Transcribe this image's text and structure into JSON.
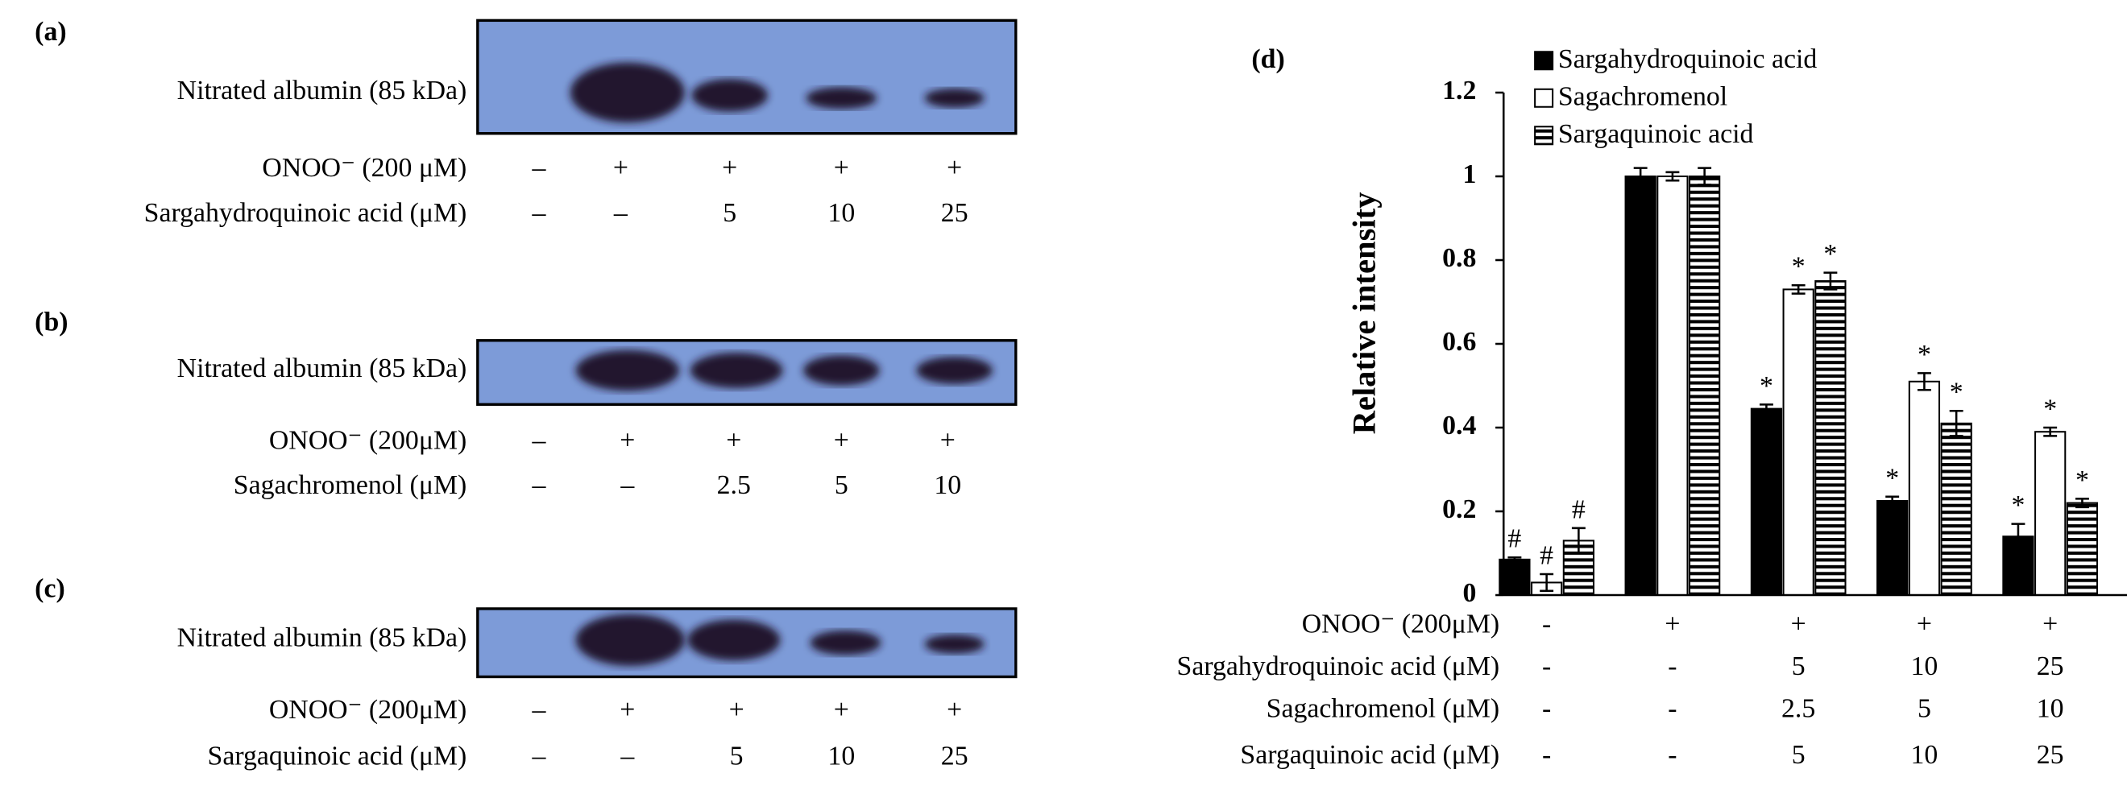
{
  "blots": [
    {
      "panel": "(a)",
      "band_label": "Nitrated albumin (85 kDa)",
      "rows": [
        {
          "label": "ONOO⁻ (200 μM)",
          "cells": [
            "–",
            "+",
            "+",
            "+",
            "+"
          ]
        },
        {
          "label": "Sargahydroquinoic acid (μM)",
          "cells": [
            "–",
            "–",
            "5",
            "10",
            "25"
          ]
        }
      ]
    },
    {
      "panel": "(b)",
      "band_label": "Nitrated albumin (85 kDa)",
      "rows": [
        {
          "label": "ONOO⁻ (200μM)",
          "cells": [
            "–",
            "+",
            "+",
            "+",
            "+"
          ]
        },
        {
          "label": "Sagachromenol (μM)",
          "cells": [
            "–",
            "–",
            "2.5",
            "5",
            "10"
          ]
        }
      ]
    },
    {
      "panel": "(c)",
      "band_label": "Nitrated albumin (85 kDa)",
      "rows": [
        {
          "label": "ONOO⁻ (200μM)",
          "cells": [
            "–",
            "+",
            "+",
            "+",
            "+"
          ]
        },
        {
          "label": "Sargaquinoic acid (μM)",
          "cells": [
            "–",
            "–",
            "5",
            "10",
            "25"
          ]
        }
      ]
    }
  ],
  "chart_data": {
    "type": "bar",
    "panel": "(d)",
    "ylabel": "Relative intensity",
    "ylim": [
      0,
      1.2
    ],
    "yticks": [
      0,
      0.2,
      0.4,
      0.6,
      0.8,
      1,
      1.2
    ],
    "x_table": {
      "rows": [
        {
          "label": "ONOO⁻ (200μM)",
          "cells": [
            "-",
            "+",
            "+",
            "+",
            "+"
          ]
        },
        {
          "label": "Sargahydroquinoic acid (μM)",
          "cells": [
            "-",
            "-",
            "5",
            "10",
            "25"
          ]
        },
        {
          "label": "Sagachromenol (μM)",
          "cells": [
            "-",
            "-",
            "2.5",
            "5",
            "10"
          ]
        },
        {
          "label": "Sargaquinoic acid (μM)",
          "cells": [
            "-",
            "-",
            "5",
            "10",
            "25"
          ]
        }
      ]
    },
    "series": [
      {
        "name": "Sargahydroquinoic acid",
        "color": "#000000",
        "pattern": "solid",
        "values": [
          0.085,
          1,
          0.445,
          0.225,
          0.14
        ],
        "errors": [
          0.005,
          0.02,
          0.01,
          0.01,
          0.03
        ],
        "marks": [
          "#",
          null,
          "*",
          "*",
          "*"
        ]
      },
      {
        "name": "Sagachromenol",
        "color": "#ffffff",
        "pattern": "solid",
        "values": [
          0.03,
          1,
          0.73,
          0.51,
          0.39
        ],
        "errors": [
          0.02,
          0.01,
          0.01,
          0.02,
          0.01
        ],
        "marks": [
          "#",
          null,
          "*",
          "*",
          "*"
        ]
      },
      {
        "name": "Sargaquinoic acid",
        "color": "#ffffff",
        "pattern": "hlines",
        "values": [
          0.13,
          1,
          0.75,
          0.41,
          0.22
        ],
        "errors": [
          0.03,
          0.02,
          0.02,
          0.03,
          0.01
        ],
        "marks": [
          "#",
          null,
          "*",
          "*",
          "*"
        ]
      }
    ]
  }
}
